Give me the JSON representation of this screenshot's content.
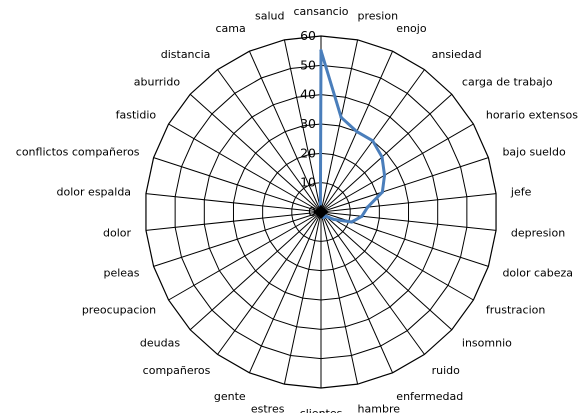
{
  "chart_data": {
    "type": "radar",
    "title": "",
    "categories": [
      "cansancio",
      "presion",
      "enojo",
      "ansiedad",
      "carga de trabajo",
      "horario extensos",
      "bajo sueldo",
      "jefe",
      "depresion",
      "dolor cabeza",
      "frustracion",
      "insomnio",
      "ruido",
      "enfermedad",
      "hambre",
      "clientes",
      "estres",
      "gente",
      "compañeros",
      "deudas",
      "preocupacion",
      "peleas",
      "dolor",
      "dolor espalda",
      "conflictos compañeros",
      "fastidio",
      "aburrido",
      "distancia",
      "cama",
      "salud"
    ],
    "rlim": [
      0,
      60
    ],
    "ticks": [
      "0",
      "10",
      "20",
      "30",
      "40",
      "50",
      "60"
    ],
    "grid": true,
    "legend": "none",
    "series": [
      {
        "color": "#4a7ebb",
        "values": [
          55,
          33,
          30,
          30,
          28,
          25,
          22,
          16,
          14,
          11,
          5,
          2,
          2,
          2,
          1,
          1,
          1,
          1,
          1,
          1,
          1,
          1,
          1,
          1,
          1,
          1,
          1,
          1,
          1,
          1
        ]
      }
    ]
  }
}
